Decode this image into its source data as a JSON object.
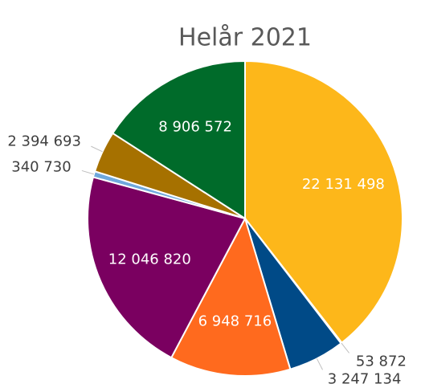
{
  "chart_data": {
    "type": "pie",
    "title": "Helår 2021",
    "values": [
      22131498,
      53872,
      3247134,
      6948716,
      12046820,
      340730,
      2394693,
      8906572
    ],
    "value_labels": [
      "22 131 498",
      "53 872",
      "3 247 134",
      "6 948 716",
      "12 046 820",
      "340 730",
      "2 394 693",
      "8 906 572"
    ],
    "colors": [
      "#fdb71a",
      "#e6e6e6",
      "#004a87",
      "#ff6a1e",
      "#7a0060",
      "#6fa8dc",
      "#a67100",
      "#006b2a"
    ]
  }
}
